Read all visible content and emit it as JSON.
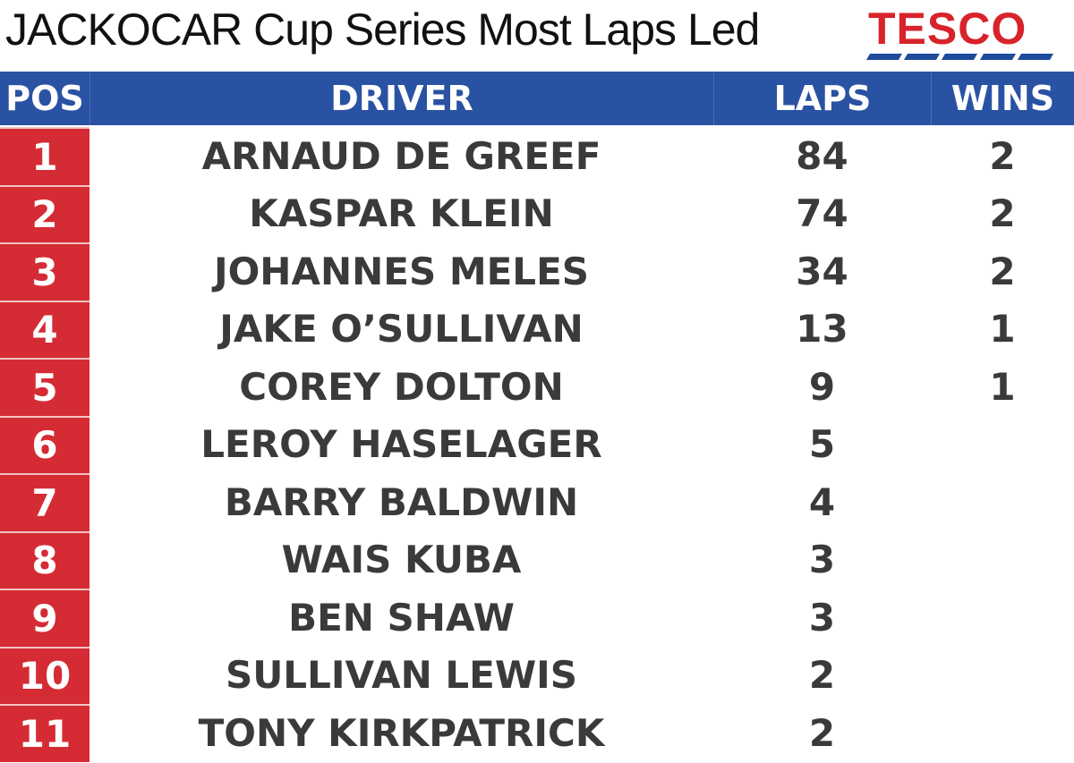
{
  "header": {
    "title": "JACKOCAR Cup Series Most Laps Led",
    "logo": "TESCO"
  },
  "table": {
    "columns": [
      "POS",
      "DRIVER",
      "LAPS",
      "WINS"
    ],
    "rows": [
      [
        "1",
        "ARNAUD DE GREEF",
        "84",
        "2"
      ],
      [
        "2",
        "KASPAR KLEIN",
        "74",
        "2"
      ],
      [
        "3",
        "JOHANNES MELES",
        "34",
        "2"
      ],
      [
        "4",
        "JAKE O’SULLIVAN",
        "13",
        "1"
      ],
      [
        "5",
        "COREY DOLTON",
        "9",
        "1"
      ],
      [
        "6",
        "LEROY HASELAGER",
        "5"
      ],
      [
        "7",
        "BARRY BALDWIN",
        "4"
      ],
      [
        "8",
        "WAIS KUBA",
        "3"
      ],
      [
        "9",
        "BEN SHAW",
        "3"
      ],
      [
        "10",
        "SULLIVAN LEWIS",
        "2"
      ],
      [
        "11",
        "TONY KIRKPATRICK",
        "2"
      ]
    ]
  }
}
